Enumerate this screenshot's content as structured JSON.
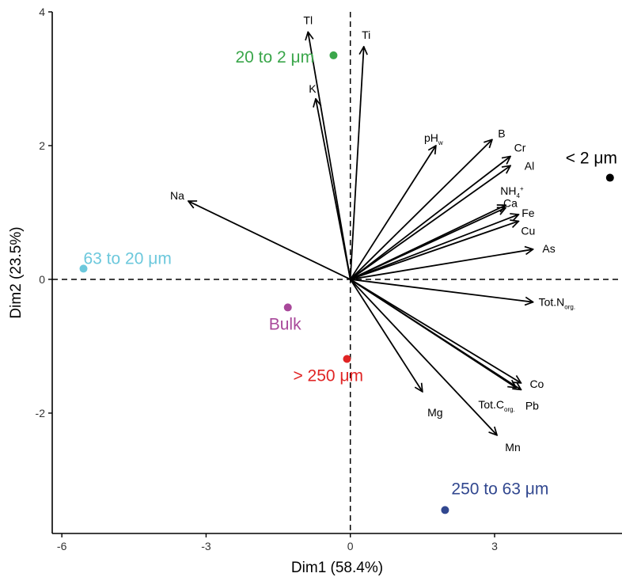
{
  "chart_data": {
    "type": "scatter",
    "title": "",
    "xlabel": "Dim1 (58.4%)",
    "ylabel": "Dim2 (23.5%)",
    "xlim": [
      -6.2,
      5.65
    ],
    "ylim": [
      -3.8,
      4.0
    ],
    "xticks": [
      -6,
      -3,
      0,
      3
    ],
    "yticks": [
      -2,
      0,
      2,
      4
    ],
    "grid": false,
    "reference_lines": {
      "x": 0,
      "y": 0,
      "style": "dashed"
    },
    "observations": [
      {
        "label": "< 2 μm",
        "x": 5.4,
        "y": 1.52,
        "color": "#000000"
      },
      {
        "label": "20 to 2 μm",
        "x": -0.35,
        "y": 3.35,
        "color": "#3aa64a"
      },
      {
        "label": "63 to 20 μm",
        "x": -5.55,
        "y": 0.16,
        "color": "#6cc8dc"
      },
      {
        "label": "Bulk",
        "x": -1.3,
        "y": -0.42,
        "color": "#a8489a"
      },
      {
        "label": "> 250 μm",
        "x": -0.07,
        "y": -1.19,
        "color": "#e02424"
      },
      {
        "label": "250 to 63 μm",
        "x": 1.97,
        "y": -3.45,
        "color": "#31478f"
      }
    ],
    "variables": [
      {
        "label": "Tl",
        "x": -0.88,
        "y": 3.7
      },
      {
        "label": "Ti",
        "x": 0.28,
        "y": 3.48
      },
      {
        "label": "K",
        "x": -0.72,
        "y": 2.7
      },
      {
        "label": "Na",
        "x": -3.37,
        "y": 1.17
      },
      {
        "label": "pH",
        "sub": "w",
        "x": 1.78,
        "y": 2.0
      },
      {
        "label": "B",
        "x": 2.95,
        "y": 2.09
      },
      {
        "label": "Cr",
        "x": 3.33,
        "y": 1.84
      },
      {
        "label": "Al",
        "x": 3.33,
        "y": 1.7
      },
      {
        "label": "NH",
        "sub": "4",
        "sup": "+",
        "x": 3.23,
        "y": 1.11
      },
      {
        "label": "Ca",
        "x": 3.23,
        "y": 1.07
      },
      {
        "label": "Fe",
        "x": 3.5,
        "y": 0.97
      },
      {
        "label": "Cu",
        "x": 3.5,
        "y": 0.87
      },
      {
        "label": "As",
        "x": 3.8,
        "y": 0.45
      },
      {
        "label": "Tot.N",
        "sub": "org.",
        "x": 3.8,
        "y": -0.34
      },
      {
        "label": "Co",
        "x": 3.55,
        "y": -1.55
      },
      {
        "label": "Pb",
        "x": 3.55,
        "y": -1.65
      },
      {
        "label": "Tot.C",
        "sub": "org.",
        "x": 3.45,
        "y": -1.62
      },
      {
        "label": "Mg",
        "x": 1.5,
        "y": -1.68
      },
      {
        "label": "Mn",
        "x": 3.05,
        "y": -2.33
      }
    ]
  }
}
